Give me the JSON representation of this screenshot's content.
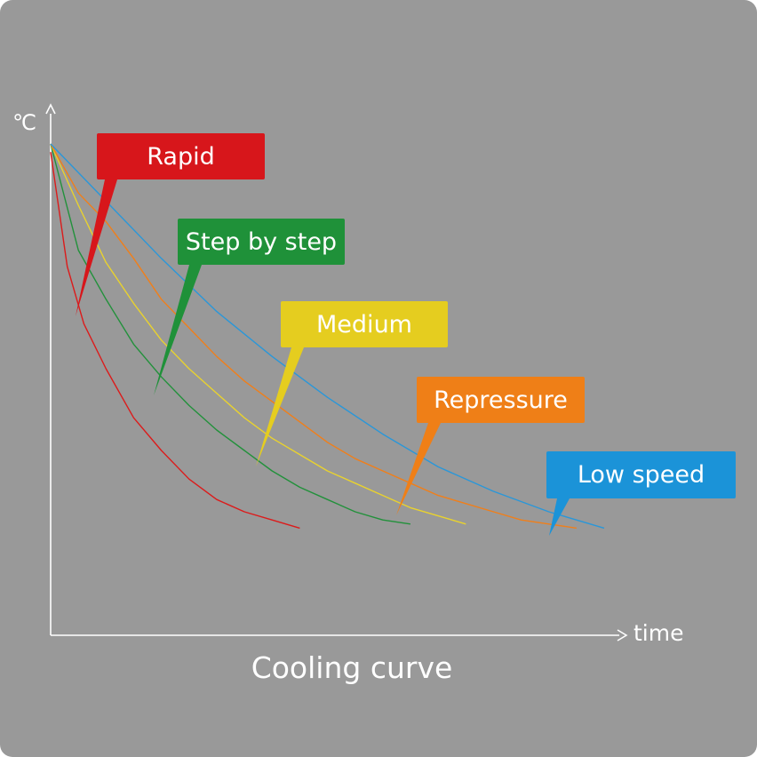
{
  "chart_data": {
    "type": "line",
    "title": "Cooling curve",
    "xlabel": "time",
    "ylabel": "℃",
    "xlim": [
      0,
      1
    ],
    "ylim": [
      0,
      1
    ],
    "grid": false,
    "legend": "callout labels on each curve",
    "series": [
      {
        "name": "Rapid",
        "color": "#dc1b1b",
        "label_color": "#d7161b",
        "x": [
          0.0,
          0.03,
          0.06,
          0.1,
          0.15,
          0.2,
          0.25,
          0.3,
          0.35,
          0.4,
          0.45
        ],
        "y": [
          0.98,
          0.7,
          0.56,
          0.45,
          0.33,
          0.25,
          0.18,
          0.13,
          0.1,
          0.08,
          0.06
        ]
      },
      {
        "name": "Step by step",
        "color": "#22913b",
        "label_color": "#1f9139",
        "x": [
          0.0,
          0.05,
          0.1,
          0.15,
          0.2,
          0.25,
          0.3,
          0.35,
          0.4,
          0.45,
          0.5,
          0.55,
          0.6,
          0.65
        ],
        "y": [
          1.0,
          0.74,
          0.62,
          0.51,
          0.43,
          0.36,
          0.3,
          0.25,
          0.2,
          0.16,
          0.13,
          0.1,
          0.08,
          0.07
        ]
      },
      {
        "name": "Medium",
        "color": "#e9d22e",
        "label_color": "#e5cd1f",
        "x": [
          0.0,
          0.05,
          0.1,
          0.15,
          0.2,
          0.25,
          0.3,
          0.35,
          0.4,
          0.45,
          0.5,
          0.55,
          0.6,
          0.65,
          0.7,
          0.75
        ],
        "y": [
          1.0,
          0.85,
          0.71,
          0.61,
          0.52,
          0.45,
          0.39,
          0.33,
          0.28,
          0.24,
          0.2,
          0.17,
          0.14,
          0.11,
          0.09,
          0.07
        ]
      },
      {
        "name": "Repressure",
        "color": "#f07f1a",
        "label_color": "#ef7f17",
        "x": [
          0.0,
          0.05,
          0.1,
          0.15,
          0.2,
          0.25,
          0.3,
          0.35,
          0.4,
          0.45,
          0.5,
          0.55,
          0.6,
          0.65,
          0.7,
          0.75,
          0.8,
          0.85,
          0.9,
          0.95
        ],
        "y": [
          1.0,
          0.88,
          0.81,
          0.72,
          0.62,
          0.55,
          0.48,
          0.42,
          0.37,
          0.32,
          0.27,
          0.23,
          0.2,
          0.17,
          0.14,
          0.12,
          0.1,
          0.08,
          0.07,
          0.06
        ]
      },
      {
        "name": "Low speed",
        "color": "#2a97d9",
        "label_color": "#1b93d8",
        "x": [
          0.0,
          0.1,
          0.2,
          0.3,
          0.4,
          0.5,
          0.6,
          0.7,
          0.8,
          0.9,
          1.0
        ],
        "y": [
          1.0,
          0.86,
          0.72,
          0.59,
          0.48,
          0.38,
          0.29,
          0.21,
          0.15,
          0.1,
          0.06
        ]
      }
    ]
  }
}
